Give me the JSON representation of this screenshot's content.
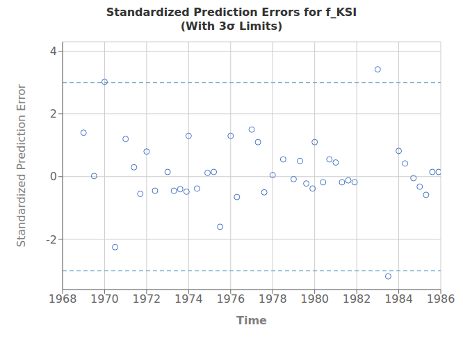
{
  "chart_data": {
    "type": "scatter",
    "title": "Standardized Prediction Errors for f_KSI",
    "subtitle": "(With 3σ Limits)",
    "xlabel": "Time",
    "ylabel": "Standardized Prediction Error",
    "xlim": [
      1968,
      1986
    ],
    "ylim": [
      -3.6,
      4.3
    ],
    "xticks": [
      1968,
      1970,
      1972,
      1974,
      1976,
      1978,
      1980,
      1982,
      1984,
      1986
    ],
    "yticks": [
      -2,
      0,
      2,
      4
    ],
    "grid": true,
    "color": "#4472C4",
    "marker": "circle",
    "reference_lines": [
      {
        "value": 3.0,
        "color": "#7BAFD4",
        "line_style": "dashed"
      },
      {
        "value": -3.0,
        "color": "#7BAFD4",
        "line_style": "dashed"
      }
    ],
    "x": [
      1969.0,
      1969.5,
      1970.0,
      1970.5,
      1971.0,
      1971.4,
      1971.7,
      1972.0,
      1972.4,
      1973.0,
      1973.3,
      1973.6,
      1973.9,
      1974.0,
      1974.4,
      1974.9,
      1975.2,
      1975.5,
      1976.0,
      1976.3,
      1977.0,
      1977.3,
      1977.6,
      1978.0,
      1978.5,
      1979.0,
      1979.3,
      1979.6,
      1979.9,
      1980.0,
      1980.4,
      1980.7,
      1981.0,
      1981.3,
      1981.6,
      1981.9,
      1983.0,
      1983.5,
      1984.0,
      1984.3,
      1984.7,
      1985.0,
      1985.3,
      1985.6,
      1985.9
    ],
    "values": [
      1.4,
      0.02,
      3.02,
      -2.25,
      1.2,
      0.3,
      -0.55,
      0.8,
      -0.45,
      0.15,
      -0.45,
      -0.4,
      -0.48,
      1.3,
      -0.38,
      0.12,
      0.15,
      -1.6,
      1.3,
      -0.65,
      1.5,
      1.1,
      -0.5,
      0.05,
      0.55,
      -0.08,
      0.5,
      -0.22,
      -0.38,
      1.1,
      -0.18,
      0.55,
      0.45,
      -0.18,
      -0.12,
      -0.18,
      3.42,
      -3.18,
      0.82,
      0.42,
      -0.05,
      -0.32,
      -0.58,
      0.15,
      0.15
    ]
  }
}
